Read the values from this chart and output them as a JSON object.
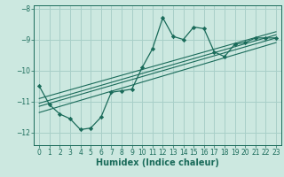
{
  "title": "",
  "xlabel": "Humidex (Indice chaleur)",
  "ylabel": "",
  "bg_color": "#cce8e0",
  "grid_color": "#a8cfc8",
  "line_color": "#1a6b5a",
  "marker_color": "#1a6b5a",
  "xlim": [
    -0.5,
    23.5
  ],
  "ylim": [
    -12.4,
    -7.9
  ],
  "yticks": [
    -12,
    -11,
    -10,
    -9,
    -8
  ],
  "xticks": [
    0,
    1,
    2,
    3,
    4,
    5,
    6,
    7,
    8,
    9,
    10,
    11,
    12,
    13,
    14,
    15,
    16,
    17,
    18,
    19,
    20,
    21,
    22,
    23
  ],
  "main_x": [
    0,
    1,
    2,
    3,
    4,
    5,
    6,
    7,
    8,
    9,
    10,
    11,
    12,
    13,
    14,
    15,
    16,
    17,
    18,
    19,
    20,
    21,
    22,
    23
  ],
  "main_y": [
    -10.5,
    -11.1,
    -11.4,
    -11.55,
    -11.9,
    -11.85,
    -11.5,
    -10.7,
    -10.65,
    -10.6,
    -9.9,
    -9.3,
    -8.3,
    -8.9,
    -9.0,
    -8.6,
    -8.65,
    -9.4,
    -9.55,
    -9.15,
    -9.1,
    -8.95,
    -8.95,
    -8.95
  ],
  "reg_lines": [
    {
      "x": [
        0,
        23
      ],
      "y": [
        -11.35,
        -9.1
      ]
    },
    {
      "x": [
        0,
        23
      ],
      "y": [
        -11.15,
        -8.95
      ]
    },
    {
      "x": [
        0,
        23
      ],
      "y": [
        -11.05,
        -8.85
      ]
    },
    {
      "x": [
        0,
        23
      ],
      "y": [
        -10.9,
        -8.75
      ]
    }
  ],
  "tick_fontsize": 5.5,
  "label_fontsize": 7.0
}
